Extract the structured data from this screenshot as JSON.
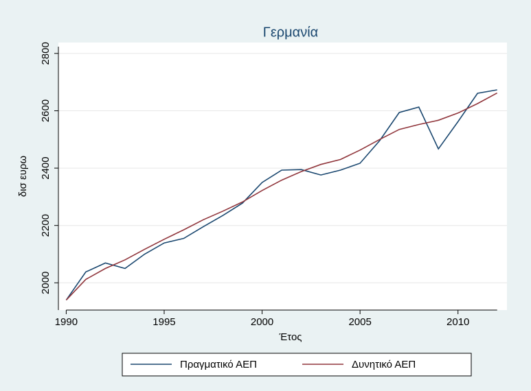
{
  "chart_data": {
    "type": "line",
    "title": "Γερμανία",
    "x_label": "Έτος",
    "y_label": "δισ ευρω",
    "x": [
      1990,
      1991,
      1992,
      1993,
      1994,
      1995,
      1996,
      1997,
      1998,
      1999,
      2000,
      2001,
      2002,
      2003,
      2004,
      2005,
      2006,
      2007,
      2008,
      2009,
      2010,
      2011,
      2012
    ],
    "series": [
      {
        "name": "Πραγματικό ΑΕΠ",
        "color": "#1a476f",
        "values": [
          1940,
          2038,
          2069,
          2050,
          2100,
          2139,
          2155,
          2196,
          2235,
          2278,
          2350,
          2393,
          2395,
          2376,
          2393,
          2417,
          2496,
          2594,
          2613,
          2467,
          2562,
          2661,
          2673
        ]
      },
      {
        "name": "Δυνητικό ΑΕΠ",
        "color": "#90353b",
        "values": [
          1940,
          2012,
          2050,
          2080,
          2117,
          2152,
          2185,
          2220,
          2250,
          2282,
          2322,
          2358,
          2388,
          2413,
          2430,
          2463,
          2500,
          2535,
          2552,
          2567,
          2592,
          2625,
          2662
        ]
      }
    ],
    "xlim": [
      1989.6,
      2012.5
    ],
    "xticks": [
      1990,
      1995,
      2000,
      2005,
      2010
    ],
    "ylim": [
      1905,
      2838
    ],
    "yticks": [
      2000,
      2200,
      2400,
      2600,
      2800
    ],
    "grid": true
  }
}
